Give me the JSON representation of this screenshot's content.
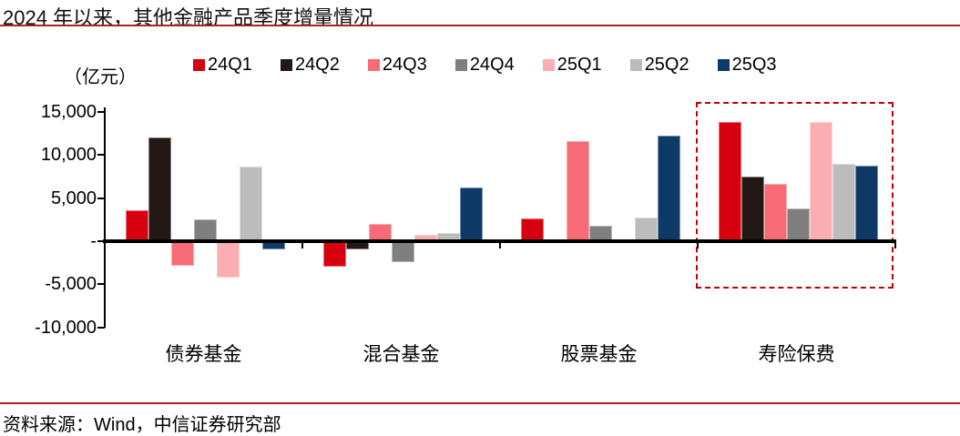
{
  "title": "2024 年以来，其他金融产品季度增量情况",
  "source": "资料来源：Wind，中信证券研究部",
  "chart_data": {
    "type": "bar",
    "title": "2024 年以来，其他金融产品季度增量情况",
    "unit_label": "（亿元）",
    "xlabel": "",
    "ylabel": "（亿元）",
    "grid": false,
    "legend_position": "top",
    "ylim": [
      -10000,
      15000
    ],
    "y_ticks": [
      {
        "label": "15,000",
        "value": 15000
      },
      {
        "label": "10,000",
        "value": 10000
      },
      {
        "label": "5,000",
        "value": 5000
      },
      {
        "label": "-",
        "value": 0
      },
      {
        "label": "-5,000",
        "value": -5000
      },
      {
        "label": "-10,000",
        "value": -10000
      }
    ],
    "categories": [
      "债券基金",
      "混合基金",
      "股票基金",
      "寿险保费"
    ],
    "series": [
      {
        "name": "24Q1",
        "color": "#D7000F",
        "values": [
          3600,
          -3000,
          2600,
          13900
        ]
      },
      {
        "name": "24Q2",
        "color": "#231815",
        "values": [
          12100,
          -1000,
          0,
          7500
        ]
      },
      {
        "name": "24Q3",
        "color": "#F66B75",
        "values": [
          -2900,
          2000,
          11600,
          6700
        ]
      },
      {
        "name": "24Q4",
        "color": "#7F7F7F",
        "values": [
          2500,
          -2400,
          1800,
          3800
        ]
      },
      {
        "name": "25Q1",
        "color": "#FBAEB1",
        "values": [
          -4200,
          700,
          0,
          13800
        ]
      },
      {
        "name": "25Q2",
        "color": "#BCBCBD",
        "values": [
          8700,
          1000,
          2700,
          9000
        ]
      },
      {
        "name": "25Q3",
        "color": "#0E3A67",
        "values": [
          -900,
          6200,
          12300,
          8800
        ]
      }
    ],
    "highlight_box_category": "寿险保费",
    "accent_colors": {
      "rule_red": "#A6261E",
      "highlight_dashed_red": "#C00000",
      "axis_black": "#000000"
    }
  }
}
